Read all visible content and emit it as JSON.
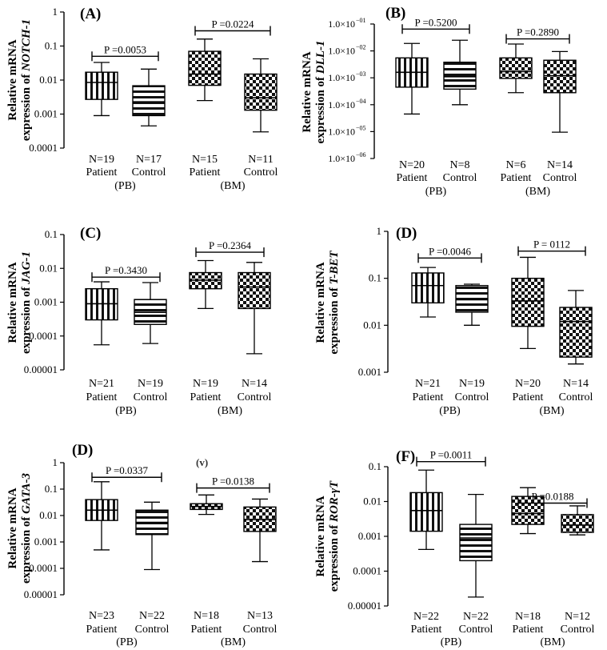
{
  "figure": {
    "stray_mark": "(v)"
  },
  "chart_data": [
    {
      "type": "box",
      "panel_label": "(A)",
      "gene": "NOTCH-1",
      "ylabel_line1": "Relative mRNA",
      "ylabel_line2_prefix": "expression of ",
      "y_scale": "log",
      "ylim": [
        0.0001,
        1
      ],
      "y_ticks": [
        0.0001,
        0.001,
        0.01,
        0.1,
        1
      ],
      "y_tick_labels": [
        "0.0001",
        "0.001",
        "0.01",
        "0.1",
        "1"
      ],
      "y_tick_style": "decimal",
      "boxes": [
        {
          "n_label": "N=19",
          "group": "Patient",
          "fill": "vertical-lines",
          "min": 0.0009,
          "q1": 0.0027,
          "median": 0.0085,
          "q3": 0.017,
          "max": 0.033
        },
        {
          "n_label": "N=17",
          "group": "Control",
          "fill": "horizontal-lines",
          "min": 0.00045,
          "q1": 0.0009,
          "median": 0.0023,
          "q3": 0.0068,
          "max": 0.021
        },
        {
          "n_label": "N=15",
          "group": "Patient",
          "fill": "checker",
          "min": 0.0025,
          "q1": 0.007,
          "median": 0.015,
          "q3": 0.07,
          "max": 0.16
        },
        {
          "n_label": "N=11",
          "group": "Control",
          "fill": "checker",
          "min": 0.0003,
          "q1": 0.0013,
          "median": 0.003,
          "q3": 0.015,
          "max": 0.042
        }
      ],
      "source_groups": [
        "(PB)",
        "(BM)"
      ],
      "comparisons": [
        {
          "label": "P =0.0053",
          "from": 0,
          "to": 1,
          "y": 0.05
        },
        {
          "label": "P =0.0224",
          "from": 2,
          "to": 3,
          "y": 0.28
        }
      ]
    },
    {
      "type": "box",
      "panel_label": "(B)",
      "gene": "DLL-1",
      "ylabel_line1": "Relative mRNA",
      "ylabel_line2_prefix": "expression of ",
      "y_scale": "log",
      "ylim": [
        1e-06,
        0.1
      ],
      "y_ticks": [
        1e-06,
        1e-05,
        0.0001,
        0.001,
        0.01,
        0.1
      ],
      "y_tick_labels": [
        "1.0×10",
        "1.0×10",
        "1.0×10",
        "1.0×10",
        "1.0×10",
        "1.0×10"
      ],
      "y_tick_exponents": [
        "−06",
        "−05",
        "−04",
        "−03",
        "−02",
        "−01"
      ],
      "y_tick_style": "scientific",
      "boxes": [
        {
          "n_label": "N=20",
          "group": "Patient",
          "fill": "vertical-lines",
          "min": 4.5e-05,
          "q1": 0.00045,
          "median": 0.0016,
          "q3": 0.0055,
          "max": 0.019
        },
        {
          "n_label": "N=8",
          "group": "Control",
          "fill": "horizontal-lines",
          "min": 0.0001,
          "q1": 0.00038,
          "median": 0.0011,
          "q3": 0.0038,
          "max": 0.025
        },
        {
          "n_label": "N=6",
          "group": "Patient",
          "fill": "checker",
          "min": 0.00028,
          "q1": 0.00095,
          "median": 0.0017,
          "q3": 0.0055,
          "max": 0.018
        },
        {
          "n_label": "N=14",
          "group": "Control",
          "fill": "checker",
          "min": 9.5e-06,
          "q1": 0.00028,
          "median": 0.0012,
          "q3": 0.0045,
          "max": 0.0095
        }
      ],
      "source_groups": [
        "(PB)",
        "(BM)"
      ],
      "comparisons": [
        {
          "label": "P =0.5200",
          "from": 0,
          "to": 1,
          "y": 0.065
        },
        {
          "label": "P =0.2890",
          "from": 2,
          "to": 3,
          "y": 0.028
        }
      ]
    },
    {
      "type": "box",
      "panel_label": "(C)",
      "gene": "JAG-1",
      "ylabel_line1": "Relative mRNA",
      "ylabel_line2_prefix": "expression of ",
      "y_scale": "log",
      "ylim": [
        1e-05,
        0.1
      ],
      "y_ticks": [
        1e-05,
        0.0001,
        0.001,
        0.01,
        0.1
      ],
      "y_tick_labels": [
        "0.00001",
        "0.0001",
        "0.001",
        "0.01",
        "0.1"
      ],
      "y_tick_style": "decimal",
      "boxes": [
        {
          "n_label": "N=21",
          "group": "Patient",
          "fill": "vertical-lines",
          "min": 5.5e-05,
          "q1": 0.0003,
          "median": 0.0009,
          "q3": 0.0025,
          "max": 0.004
        },
        {
          "n_label": "N=19",
          "group": "Control",
          "fill": "horizontal-lines",
          "min": 6e-05,
          "q1": 0.00022,
          "median": 0.0005,
          "q3": 0.0012,
          "max": 0.0038
        },
        {
          "n_label": "N=19",
          "group": "Patient",
          "fill": "checker",
          "min": 0.00065,
          "q1": 0.0025,
          "median": 0.0045,
          "q3": 0.0075,
          "max": 0.017
        },
        {
          "n_label": "N=14",
          "group": "Control",
          "fill": "checker",
          "min": 3e-05,
          "q1": 0.00065,
          "median": 0.0028,
          "q3": 0.0075,
          "max": 0.015
        }
      ],
      "source_groups": [
        "(PB)",
        "(BM)"
      ],
      "comparisons": [
        {
          "label": "P =0.3430",
          "from": 0,
          "to": 1,
          "y": 0.0055
        },
        {
          "label": "P =0.2364",
          "from": 2,
          "to": 3,
          "y": 0.03
        }
      ]
    },
    {
      "type": "box",
      "panel_label": "(D)",
      "gene": "T-BET",
      "ylabel_line1": "Relative mRNA",
      "ylabel_line2_prefix": "expression of ",
      "y_scale": "log",
      "ylim": [
        0.001,
        1
      ],
      "y_ticks": [
        0.001,
        0.01,
        0.1,
        1
      ],
      "y_tick_labels": [
        "0.001",
        "0.01",
        "0.1",
        "1"
      ],
      "y_tick_style": "decimal",
      "boxes": [
        {
          "n_label": "N=21",
          "group": "Patient",
          "fill": "vertical-lines",
          "min": 0.015,
          "q1": 0.03,
          "median": 0.07,
          "q3": 0.13,
          "max": 0.17
        },
        {
          "n_label": "N=19",
          "group": "Control",
          "fill": "horizontal-lines",
          "min": 0.01,
          "q1": 0.019,
          "median": 0.035,
          "q3": 0.07,
          "max": 0.075
        },
        {
          "n_label": "N=20",
          "group": "Patient",
          "fill": "checker",
          "min": 0.0032,
          "q1": 0.0095,
          "median": 0.033,
          "q3": 0.1,
          "max": 0.28
        },
        {
          "n_label": "N=14",
          "group": "Control",
          "fill": "checker",
          "min": 0.0015,
          "q1": 0.0021,
          "median": 0.012,
          "q3": 0.024,
          "max": 0.055
        }
      ],
      "source_groups": [
        "(PB)",
        "(BM)"
      ],
      "comparisons": [
        {
          "label": "P =0.0046",
          "from": 0,
          "to": 1,
          "y": 0.27
        },
        {
          "label": "P = 0112",
          "from": 2,
          "to": 3,
          "y": 0.38
        }
      ]
    },
    {
      "type": "box",
      "panel_label": "(D)",
      "gene": "GATA-3",
      "ylabel_line1": "Relative mRNA",
      "ylabel_line2_prefix": "expression of ",
      "y_scale": "log",
      "ylim": [
        1e-05,
        1
      ],
      "y_ticks": [
        1e-05,
        0.0001,
        0.001,
        0.01,
        0.1,
        1
      ],
      "y_tick_labels": [
        "0.00001",
        "0.0001",
        "0.001",
        "0.01",
        "0.1",
        "1"
      ],
      "y_tick_style": "decimal",
      "boxes": [
        {
          "n_label": "N=23",
          "group": "Patient",
          "fill": "vertical-lines",
          "min": 0.0005,
          "q1": 0.0065,
          "median": 0.016,
          "q3": 0.04,
          "max": 0.19
        },
        {
          "n_label": "N=22",
          "group": "Control",
          "fill": "horizontal-lines",
          "min": 9e-05,
          "q1": 0.0019,
          "median": 0.0055,
          "q3": 0.016,
          "max": 0.032
        },
        {
          "n_label": "N=18",
          "group": "Patient",
          "fill": "checker",
          "min": 0.011,
          "q1": 0.017,
          "median": 0.022,
          "q3": 0.028,
          "max": 0.06
        },
        {
          "n_label": "N=13",
          "group": "Control",
          "fill": "checker",
          "min": 0.00018,
          "q1": 0.0025,
          "median": 0.007,
          "q3": 0.021,
          "max": 0.042
        }
      ],
      "source_groups": [
        "(PB)",
        "(BM)"
      ],
      "comparisons": [
        {
          "label": "P =0.0337",
          "from": 0,
          "to": 1,
          "y": 0.28
        },
        {
          "label": "P =0.0138",
          "from": 2,
          "to": 3,
          "y": 0.11
        }
      ]
    },
    {
      "type": "box",
      "panel_label": "(F)",
      "gene": "ROR-γT",
      "ylabel_line1": "Relative mRNA",
      "ylabel_line2_prefix": "expression of ",
      "y_scale": "log",
      "ylim": [
        1e-05,
        0.1
      ],
      "y_ticks": [
        1e-05,
        0.0001,
        0.001,
        0.01,
        0.1
      ],
      "y_tick_labels": [
        "0.00001",
        "0.0001",
        "0.001",
        "0.01",
        "0.1"
      ],
      "y_tick_style": "decimal",
      "boxes": [
        {
          "n_label": "N=22",
          "group": "Patient",
          "fill": "vertical-lines",
          "min": 0.00042,
          "q1": 0.0014,
          "median": 0.0055,
          "q3": 0.018,
          "max": 0.08
        },
        {
          "n_label": "N=22",
          "group": "Control",
          "fill": "horizontal-lines",
          "min": 1.8e-05,
          "q1": 0.0002,
          "median": 0.0009,
          "q3": 0.0022,
          "max": 0.016
        },
        {
          "n_label": "N=18",
          "group": "Patient",
          "fill": "checker",
          "min": 0.0012,
          "q1": 0.0022,
          "median": 0.0045,
          "q3": 0.014,
          "max": 0.025
        },
        {
          "n_label": "N=12",
          "group": "Control",
          "fill": "checker",
          "min": 0.0011,
          "q1": 0.0013,
          "median": 0.0021,
          "q3": 0.0042,
          "max": 0.0075
        }
      ],
      "source_groups": [
        "(PB)",
        "(BM)"
      ],
      "comparisons": [
        {
          "label": "P =0.0011",
          "from": 0,
          "to": 1,
          "y": 0.14
        },
        {
          "label": "P =0.0188",
          "from": 2,
          "to": 3,
          "y": 0.009
        }
      ]
    }
  ]
}
